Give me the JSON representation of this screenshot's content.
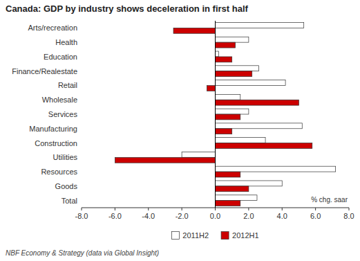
{
  "chart_data": {
    "type": "bar",
    "orientation": "horizontal",
    "title": "Canada: GDP by industry shows deceleration in first half",
    "categories": [
      "Total",
      "Goods",
      "Resources",
      "Utilities",
      "Construction",
      "Manufacturing",
      "Services",
      "Wholesale",
      "Retail",
      "Finance/Realestate",
      "Education",
      "Health",
      "Arts/recreation"
    ],
    "series": [
      {
        "name": "2011H2",
        "color": "#ffffff",
        "values": [
          2.5,
          4.0,
          7.2,
          -2.0,
          3.0,
          5.2,
          2.0,
          1.5,
          4.2,
          2.6,
          0.2,
          2.0,
          5.3
        ]
      },
      {
        "name": "2012H1",
        "color": "#cc0000",
        "values": [
          1.5,
          2.0,
          1.5,
          -6.0,
          5.8,
          1.0,
          1.5,
          5.0,
          -0.5,
          2.2,
          1.0,
          1.2,
          -2.5
        ]
      }
    ],
    "xlim": [
      -8.0,
      8.0
    ],
    "xticks": [
      {
        "value": -8.0,
        "label": "-8.0"
      },
      {
        "value": -6.0,
        "label": "-6.0"
      },
      {
        "value": -4.0,
        "label": "-4.0"
      },
      {
        "value": -2.0,
        "label": "-2.0"
      },
      {
        "value": 0.0,
        "label": "0.0"
      },
      {
        "value": 2.0,
        "label": "2.0"
      },
      {
        "value": 4.0,
        "label": "4.0"
      },
      {
        "value": 6.0,
        "label": "6.0"
      },
      {
        "value": 8.0,
        "label": "8.0"
      }
    ],
    "xlabel": "% chg. saar",
    "footnote": "NBF Economy & Strategy (data via Global Insight)",
    "legend": "bottom",
    "grid": false
  }
}
